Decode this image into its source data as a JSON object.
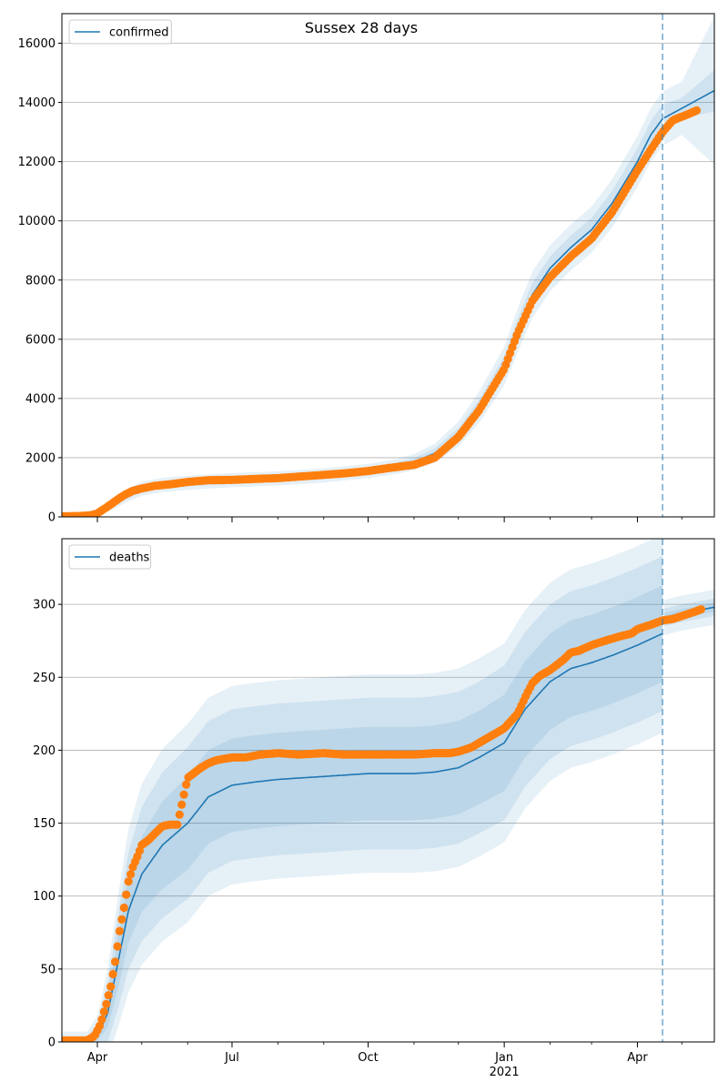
{
  "figure_title": "Sussex 28 days",
  "colors": {
    "model": "#1f77b4",
    "observed": "#ff7f0e",
    "band": "#1f77b4",
    "grid": "#b0b0b0",
    "forecast_line": "#1f77b4"
  },
  "x_axis": {
    "start": "2020-03-08",
    "end": "2021-05-23",
    "ticks": [
      {
        "date": "2020-04-01",
        "label": "Apr"
      },
      {
        "date": "2020-07-01",
        "label": "Jul"
      },
      {
        "date": "2020-10-01",
        "label": "Oct"
      },
      {
        "date": "2021-01-01",
        "label": "Jan",
        "sublabel": "2021"
      },
      {
        "date": "2021-04-01",
        "label": "Apr"
      }
    ],
    "minor_ticks": [
      "2020-05-01",
      "2020-06-01",
      "2020-08-01",
      "2020-09-01",
      "2020-11-01",
      "2020-12-01",
      "2021-02-01",
      "2021-03-01",
      "2021-05-01"
    ]
  },
  "forecast_date": "2021-04-18",
  "chart_data": [
    {
      "type": "line",
      "title": "Sussex 28 days",
      "legend": [
        "confirmed"
      ],
      "legend_placement": "top-left",
      "ylim": [
        0,
        17000
      ],
      "yticks": [
        0,
        2000,
        4000,
        6000,
        8000,
        10000,
        12000,
        14000,
        16000
      ],
      "grid": true,
      "model_x": [
        "2020-03-08",
        "2020-03-20",
        "2020-04-01",
        "2020-04-10",
        "2020-04-20",
        "2020-05-01",
        "2020-05-15",
        "2020-06-01",
        "2020-07-01",
        "2020-08-01",
        "2020-09-01",
        "2020-10-01",
        "2020-10-20",
        "2020-11-01",
        "2020-11-15",
        "2020-12-01",
        "2020-12-15",
        "2021-01-01",
        "2021-01-10",
        "2021-01-20",
        "2021-02-01",
        "2021-02-15",
        "2021-03-01",
        "2021-03-15",
        "2021-04-01",
        "2021-04-10",
        "2021-04-18",
        "2021-05-01",
        "2021-05-23"
      ],
      "model_y": [
        30,
        40,
        150,
        400,
        700,
        950,
        1080,
        1150,
        1240,
        1300,
        1400,
        1550,
        1700,
        1850,
        2150,
        2800,
        3700,
        5100,
        6300,
        7500,
        8400,
        9100,
        9700,
        10600,
        12000,
        12900,
        13450,
        13800,
        14400
      ],
      "band_inner_halfwidth": [
        10,
        15,
        40,
        80,
        110,
        120,
        120,
        120,
        120,
        120,
        120,
        120,
        130,
        140,
        160,
        200,
        260,
        330,
        380,
        400,
        400,
        400,
        400,
        420,
        450,
        470,
        480,
        350,
        700
      ],
      "band_outer_halfwidth": [
        20,
        30,
        90,
        170,
        220,
        240,
        240,
        240,
        240,
        240,
        240,
        240,
        250,
        270,
        320,
        420,
        530,
        650,
        740,
        780,
        780,
        780,
        780,
        810,
        860,
        900,
        920,
        900,
        2500
      ],
      "observed_x": [
        "2020-03-08",
        "2020-03-20",
        "2020-03-28",
        "2020-04-01",
        "2020-04-05",
        "2020-04-10",
        "2020-04-15",
        "2020-04-20",
        "2020-04-25",
        "2020-05-01",
        "2020-05-10",
        "2020-05-20",
        "2020-06-01",
        "2020-06-15",
        "2020-07-01",
        "2020-07-15",
        "2020-08-01",
        "2020-08-15",
        "2020-09-01",
        "2020-09-15",
        "2020-10-01",
        "2020-10-15",
        "2020-11-01",
        "2020-11-15",
        "2020-12-01",
        "2020-12-15",
        "2021-01-01",
        "2021-01-10",
        "2021-01-20",
        "2021-02-01",
        "2021-02-15",
        "2021-03-01",
        "2021-03-15",
        "2021-04-01",
        "2021-04-10",
        "2021-04-18",
        "2021-04-25",
        "2021-05-05",
        "2021-05-12"
      ],
      "observed_y": [
        20,
        30,
        60,
        120,
        250,
        420,
        600,
        760,
        880,
        960,
        1050,
        1100,
        1180,
        1240,
        1250,
        1280,
        1310,
        1360,
        1420,
        1470,
        1550,
        1650,
        1760,
        2000,
        2700,
        3600,
        5000,
        6200,
        7300,
        8100,
        8800,
        9400,
        10300,
        11700,
        12400,
        13000,
        13400,
        13600,
        13750
      ]
    },
    {
      "type": "line",
      "title": "",
      "legend": [
        "deaths"
      ],
      "legend_placement": "top-left",
      "ylim": [
        0,
        345
      ],
      "yticks": [
        0,
        50,
        100,
        150,
        200,
        250,
        300
      ],
      "grid": true,
      "model_x": [
        "2020-03-08",
        "2020-03-25",
        "2020-04-01",
        "2020-04-08",
        "2020-04-15",
        "2020-04-22",
        "2020-05-01",
        "2020-05-15",
        "2020-06-01",
        "2020-06-15",
        "2020-07-01",
        "2020-07-15",
        "2020-08-01",
        "2020-09-01",
        "2020-10-01",
        "2020-11-01",
        "2020-11-15",
        "2020-12-01",
        "2020-12-15",
        "2021-01-01",
        "2021-01-15",
        "2021-02-01",
        "2021-02-15",
        "2021-03-01",
        "2021-03-15",
        "2021-04-01",
        "2021-04-18",
        "2021-04-19",
        "2021-05-01",
        "2021-05-23"
      ],
      "model_y": [
        1,
        1,
        4,
        20,
        55,
        90,
        115,
        135,
        150,
        168,
        176,
        178,
        180,
        182,
        184,
        184,
        185,
        188,
        195,
        205,
        228,
        247,
        256,
        260,
        265,
        272,
        280,
        291,
        294,
        298
      ],
      "band_inner_halfwidth": [
        1,
        1,
        3,
        10,
        18,
        22,
        26,
        30,
        32,
        32,
        32,
        32,
        32,
        32,
        32,
        32,
        32,
        32,
        32,
        33,
        33,
        33,
        33,
        33,
        33,
        33,
        33,
        3,
        3,
        3
      ],
      "band_mid_halfwidth": [
        3,
        3,
        8,
        20,
        32,
        40,
        46,
        50,
        52,
        52,
        52,
        52,
        52,
        52,
        52,
        52,
        52,
        52,
        52,
        53,
        53,
        53,
        53,
        53,
        53,
        53,
        53,
        6,
        6,
        6
      ],
      "band_outer_halfwidth": [
        6,
        6,
        14,
        30,
        45,
        56,
        62,
        66,
        68,
        68,
        68,
        68,
        68,
        68,
        68,
        68,
        68,
        68,
        68,
        68,
        68,
        68,
        68,
        68,
        68,
        68,
        68,
        12,
        12,
        12
      ],
      "observed_x": [
        "2020-03-08",
        "2020-03-25",
        "2020-03-30",
        "2020-04-03",
        "2020-04-07",
        "2020-04-10",
        "2020-04-13",
        "2020-04-16",
        "2020-04-19",
        "2020-04-22",
        "2020-04-25",
        "2020-04-28",
        "2020-05-01",
        "2020-05-05",
        "2020-05-10",
        "2020-05-15",
        "2020-05-20",
        "2020-05-25",
        "2020-06-01",
        "2020-06-10",
        "2020-06-15",
        "2020-06-20",
        "2020-06-25",
        "2020-07-01",
        "2020-07-10",
        "2020-07-20",
        "2020-08-01",
        "2020-08-15",
        "2020-09-01",
        "2020-09-15",
        "2020-10-01",
        "2020-10-15",
        "2020-11-01",
        "2020-11-15",
        "2020-11-25",
        "2020-12-01",
        "2020-12-10",
        "2020-12-20",
        "2021-01-01",
        "2021-01-10",
        "2021-01-15",
        "2021-01-20",
        "2021-01-25",
        "2021-02-01",
        "2021-02-10",
        "2021-02-15",
        "2021-02-20",
        "2021-03-01",
        "2021-03-10",
        "2021-03-20",
        "2021-03-28",
        "2021-04-01",
        "2021-04-10",
        "2021-04-18",
        "2021-04-25",
        "2021-05-01",
        "2021-05-10",
        "2021-05-15"
      ],
      "observed_y": [
        1,
        1,
        4,
        12,
        26,
        38,
        55,
        76,
        92,
        110,
        120,
        127,
        135,
        138,
        143,
        148,
        149,
        149,
        181,
        188,
        191,
        193,
        194,
        195,
        195,
        197,
        198,
        197,
        198,
        197,
        197,
        197,
        197,
        198,
        198,
        199,
        202,
        208,
        215,
        225,
        236,
        246,
        251,
        255,
        262,
        267,
        268,
        272,
        275,
        278,
        280,
        283,
        286,
        289,
        290,
        292,
        295,
        297
      ]
    }
  ]
}
